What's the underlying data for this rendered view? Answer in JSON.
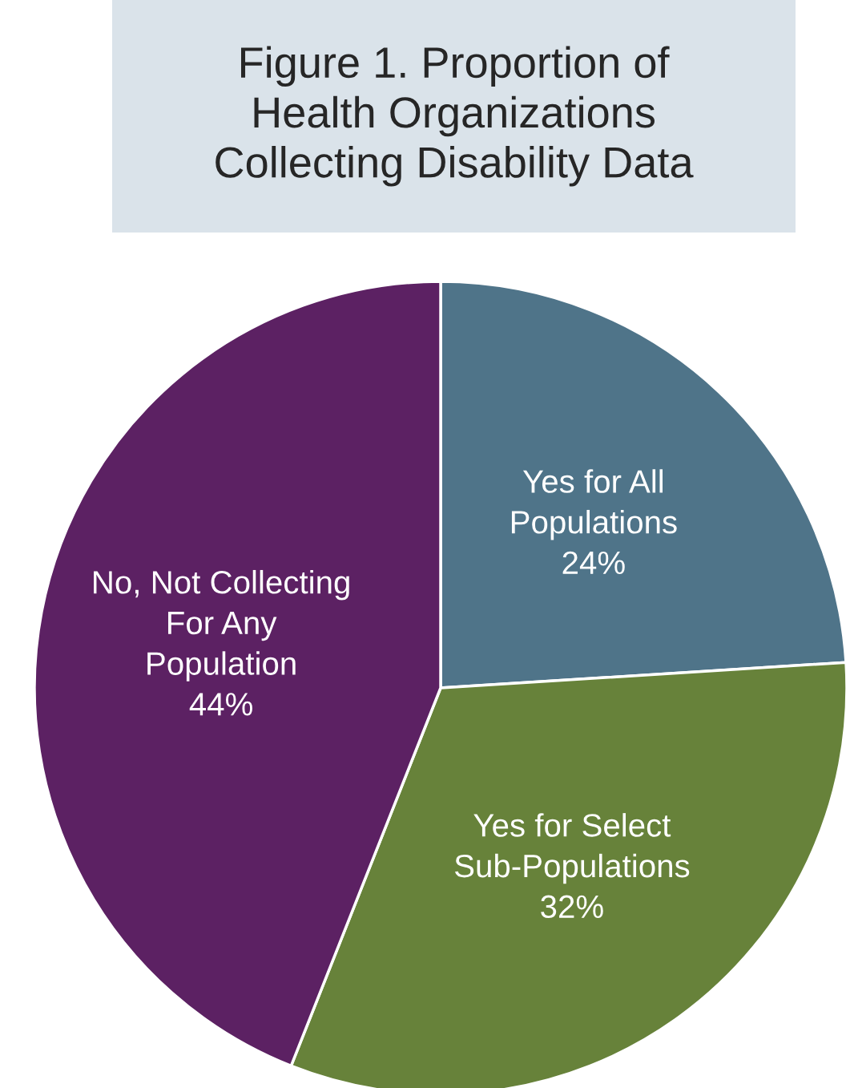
{
  "chart_data": {
    "type": "pie",
    "title": "Figure 1. Proportion of\nHealth Organizations\nCollecting Disability Data",
    "categories": [
      "Yes for All\nPopulations",
      "Yes for Select\nSub-Populations",
      "No, Not Collecting\nFor Any\nPopulation"
    ],
    "values": [
      24,
      32,
      44
    ],
    "value_labels": [
      "24%",
      "32%",
      "44%"
    ],
    "colors": [
      "#4f7489",
      "#67823a",
      "#5c2163"
    ]
  }
}
